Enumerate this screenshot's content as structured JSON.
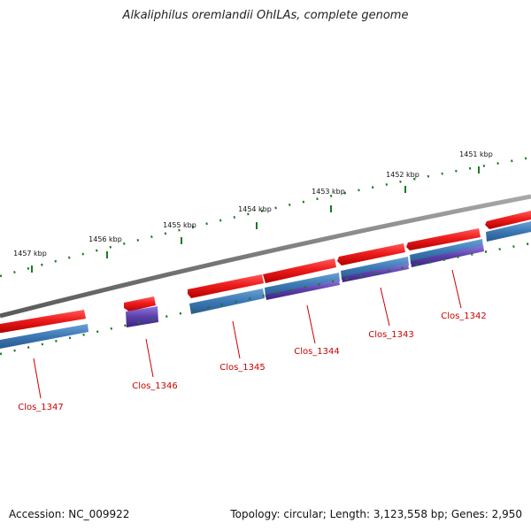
{
  "title": "Alkaliphilus oremlandii OhILAs, complete genome",
  "accession": "Accession: NC_009922",
  "topology": "Topology: circular; Length: 3,123,558 bp; Genes: 2,950",
  "ruler": {
    "ticks": [
      "1457 kbp",
      "1456 kbp",
      "1455 kbp",
      "1454 kbp",
      "1453 kbp",
      "1452 kbp",
      "1451 kbp"
    ]
  },
  "genes": [
    "Clos_1347",
    "Clos_1346",
    "Clos_1345",
    "Clos_1344",
    "Clos_1343",
    "Clos_1342"
  ],
  "colors": {
    "forward_gene": "#e8131b",
    "cds_blue": "#3b78b4",
    "cds_purple": "#5b3fa8",
    "backbone": "#7a7a7a",
    "ruler_tick": "#1e7a1e",
    "label": "#cc0000"
  }
}
